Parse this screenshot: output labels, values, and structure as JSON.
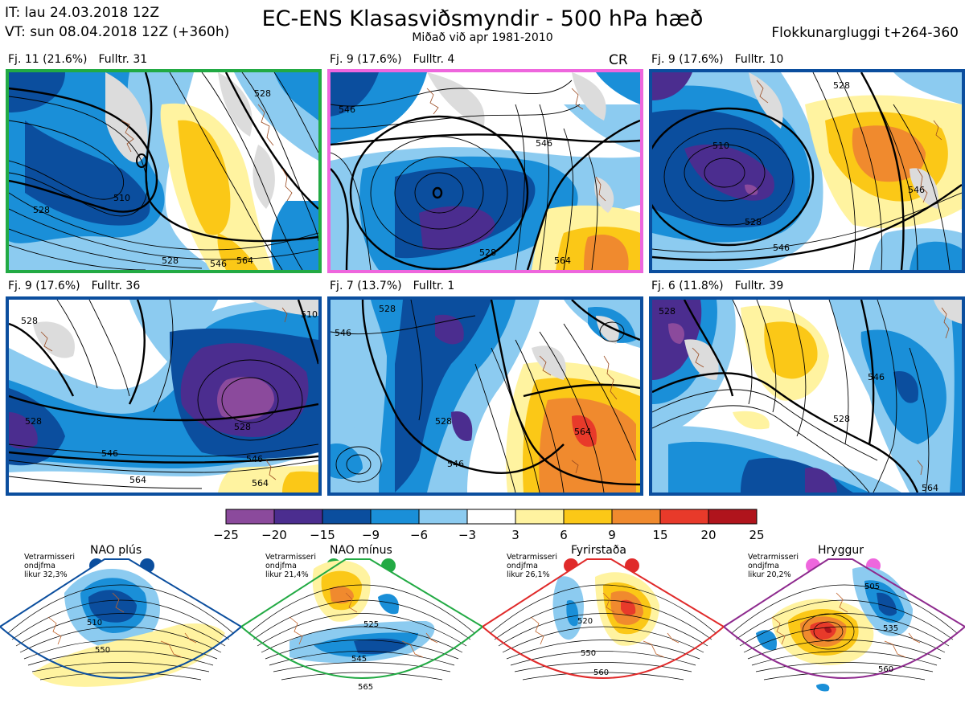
{
  "header": {
    "it": "IT: lau 24.03.2018 12Z",
    "vt": "VT: sun 08.04.2018 12Z  (+360h)",
    "title": "EC-ENS Klasasviðsmyndir - 500 hPa hæð",
    "subtitle": "Miðað við apr 1981-2010",
    "window": "Flokkunargluggi t+264-360"
  },
  "panels": [
    {
      "label": "Fj. 11 (21.6%)",
      "members": "Fulltr. 31",
      "border": "#22aa44",
      "tag": ""
    },
    {
      "label": "Fj. 9 (17.6%)",
      "members": "Fulltr. 4",
      "border": "#ee66dd",
      "tag": "CR"
    },
    {
      "label": "Fj. 9 (17.6%)",
      "members": "Fulltr. 10",
      "border": "#0b4e9e",
      "tag": ""
    },
    {
      "label": "Fj. 9 (17.6%)",
      "members": "Fulltr. 36",
      "border": "#0b4e9e",
      "tag": ""
    },
    {
      "label": "Fj. 7 (13.7%)",
      "members": "Fulltr. 1",
      "border": "#0b4e9e",
      "tag": ""
    },
    {
      "label": "Fj. 6 (11.8%)",
      "members": "Fulltr. 39",
      "border": "#0b4e9e",
      "tag": ""
    }
  ],
  "contour_labels": {
    "p0": [
      "510",
      "528",
      "528",
      "528",
      "546",
      "564"
    ],
    "p1": [
      "546",
      "528",
      "546",
      "564"
    ],
    "p2": [
      "510",
      "528",
      "528",
      "546",
      "546"
    ],
    "p3": [
      "528",
      "510",
      "528",
      "528",
      "546",
      "546",
      "564",
      "564"
    ],
    "p4": [
      "528",
      "546",
      "546",
      "528",
      "564"
    ],
    "p5": [
      "528",
      "528",
      "546",
      "564"
    ]
  },
  "colorbar": {
    "ticks": [
      "−25",
      "−20",
      "−15",
      "−9",
      "−6",
      "−3",
      "3",
      "6",
      "9",
      "15",
      "20",
      "25"
    ],
    "colors": [
      "#8b4a9c",
      "#4b2d8f",
      "#0b4e9e",
      "#1a8fd8",
      "#8ccbf0",
      "#ffffff",
      "#fff3a0",
      "#fbc817",
      "#f08a2e",
      "#e83a2a",
      "#b0141c"
    ]
  },
  "regimes": [
    {
      "name": "NAO plús",
      "info": [
        "Vetrarmisseri",
        "ondjfma",
        "likur 32,3%"
      ],
      "color": "#0b4e9e",
      "dots": "#0b4e9e",
      "labels": [
        "510",
        "550"
      ]
    },
    {
      "name": "NAO mínus",
      "info": [
        "Vetrarmisseri",
        "ondjfma",
        "likur 21,4%"
      ],
      "color": "#22aa44",
      "dots": "#22aa44",
      "labels": [
        "525",
        "545",
        "565"
      ]
    },
    {
      "name": "Fyrirstaða",
      "info": [
        "Vetrarmisseri",
        "ondjfma",
        "likur 26,1%"
      ],
      "color": "#e02a2a",
      "dots": "#e02a2a",
      "labels": [
        "520",
        "550",
        "560"
      ]
    },
    {
      "name": "Hryggur",
      "info": [
        "Vetrarmisseri",
        "ondjfma",
        "likur 20,2%"
      ],
      "color": "#8e2a8e",
      "dots": "#ee66dd",
      "labels": [
        "505",
        "535",
        "560"
      ]
    }
  ]
}
